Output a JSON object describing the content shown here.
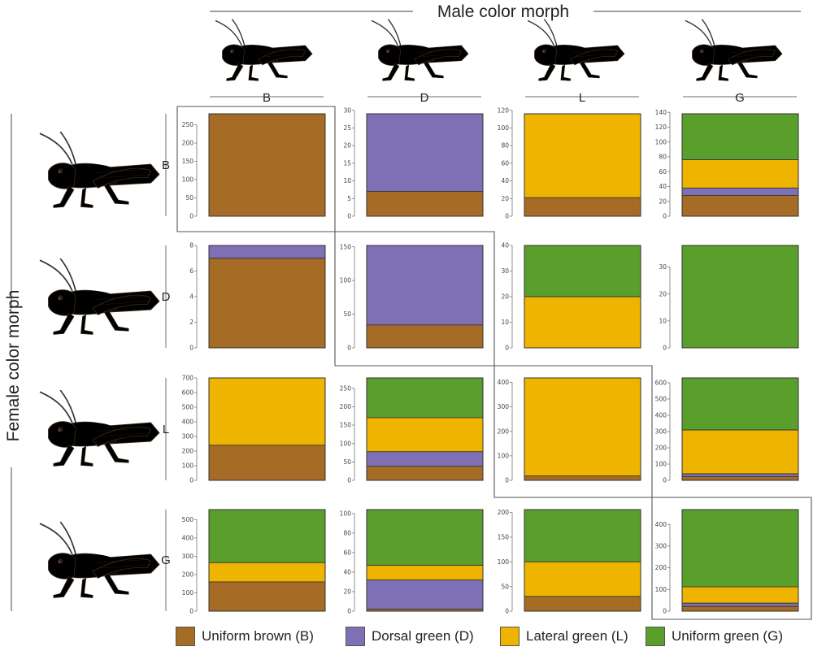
{
  "figure": {
    "male_axis_title": "Male color morph",
    "female_axis_title": "Female color morph"
  },
  "colors": {
    "B": "#a66c26",
    "D": "#7f6fb5",
    "L": "#eeb400",
    "G": "#5a9e2c",
    "body_brown": "#a87352",
    "body_green": "#7bbf44"
  },
  "legend": [
    {
      "key": "B",
      "label": "Uniform brown (B)"
    },
    {
      "key": "D",
      "label": "Dorsal green (D)"
    },
    {
      "key": "L",
      "label": "Lateral green (L)"
    },
    {
      "key": "G",
      "label": "Uniform green (G)"
    }
  ],
  "chart_data": {
    "type": "bar",
    "title": "",
    "layout": "4x4 grid of stacked single bars (rows: female morph, columns: male morph)",
    "column_labels": [
      "B",
      "D",
      "L",
      "G"
    ],
    "row_labels": [
      "B",
      "D",
      "L",
      "G"
    ],
    "stack_order": [
      "B",
      "D",
      "L",
      "G"
    ],
    "panels": [
      {
        "female": "B",
        "male": "B",
        "ylim": [
          0,
          280
        ],
        "ticks": [
          0,
          50,
          100,
          150,
          200,
          250
        ],
        "values": {
          "B": 280,
          "D": 0,
          "L": 0,
          "G": 0
        }
      },
      {
        "female": "B",
        "male": "D",
        "ylim": [
          0,
          29
        ],
        "ticks": [
          0,
          5,
          10,
          15,
          20,
          25,
          30
        ],
        "values": {
          "B": 7,
          "D": 22,
          "L": 0,
          "G": 0
        }
      },
      {
        "female": "B",
        "male": "L",
        "ylim": [
          0,
          116
        ],
        "ticks": [
          0,
          20,
          40,
          60,
          80,
          100,
          120
        ],
        "values": {
          "B": 21,
          "D": 0,
          "L": 95,
          "G": 0
        }
      },
      {
        "female": "B",
        "male": "G",
        "ylim": [
          0,
          138
        ],
        "ticks": [
          0,
          20,
          40,
          60,
          80,
          100,
          120,
          140
        ],
        "values": {
          "B": 28,
          "D": 10,
          "L": 38,
          "G": 62
        }
      },
      {
        "female": "D",
        "male": "B",
        "ylim": [
          0,
          8
        ],
        "ticks": [
          0,
          2,
          4,
          6,
          8
        ],
        "values": {
          "B": 7,
          "D": 1,
          "L": 0,
          "G": 0
        }
      },
      {
        "female": "D",
        "male": "D",
        "ylim": [
          0,
          152
        ],
        "ticks": [
          0,
          50,
          100,
          150
        ],
        "values": {
          "B": 34,
          "D": 118,
          "L": 0,
          "G": 0
        }
      },
      {
        "female": "D",
        "male": "L",
        "ylim": [
          0,
          40
        ],
        "ticks": [
          0,
          10,
          20,
          30,
          40
        ],
        "values": {
          "B": 0,
          "D": 0,
          "L": 20,
          "G": 20
        }
      },
      {
        "female": "D",
        "male": "G",
        "ylim": [
          0,
          38
        ],
        "ticks": [
          0,
          10,
          20,
          30
        ],
        "values": {
          "B": 0,
          "D": 0,
          "L": 0,
          "G": 38
        }
      },
      {
        "female": "L",
        "male": "B",
        "ylim": [
          0,
          700
        ],
        "ticks": [
          0,
          100,
          200,
          300,
          400,
          500,
          600,
          700
        ],
        "values": {
          "B": 240,
          "D": 0,
          "L": 460,
          "G": 0
        }
      },
      {
        "female": "L",
        "male": "D",
        "ylim": [
          0,
          278
        ],
        "ticks": [
          0,
          50,
          100,
          150,
          200,
          250
        ],
        "values": {
          "B": 38,
          "D": 40,
          "L": 92,
          "G": 108
        }
      },
      {
        "female": "L",
        "male": "L",
        "ylim": [
          0,
          418
        ],
        "ticks": [
          0,
          100,
          200,
          300,
          400
        ],
        "values": {
          "B": 18,
          "D": 0,
          "L": 400,
          "G": 0
        }
      },
      {
        "female": "L",
        "male": "G",
        "ylim": [
          0,
          630
        ],
        "ticks": [
          0,
          100,
          200,
          300,
          400,
          500,
          600
        ],
        "values": {
          "B": 22,
          "D": 18,
          "L": 270,
          "G": 320
        }
      },
      {
        "female": "G",
        "male": "B",
        "ylim": [
          0,
          555
        ],
        "ticks": [
          0,
          100,
          200,
          300,
          400,
          500
        ],
        "values": {
          "B": 160,
          "D": 0,
          "L": 105,
          "G": 290
        }
      },
      {
        "female": "G",
        "male": "D",
        "ylim": [
          0,
          104
        ],
        "ticks": [
          0,
          20,
          40,
          60,
          80,
          100
        ],
        "values": {
          "B": 2,
          "D": 30,
          "L": 15,
          "G": 57
        }
      },
      {
        "female": "G",
        "male": "L",
        "ylim": [
          0,
          206
        ],
        "ticks": [
          0,
          50,
          100,
          150,
          200
        ],
        "values": {
          "B": 30,
          "D": 0,
          "L": 70,
          "G": 106
        }
      },
      {
        "female": "G",
        "male": "G",
        "ylim": [
          0,
          468
        ],
        "ticks": [
          0,
          100,
          200,
          300,
          400
        ],
        "values": {
          "B": 22,
          "D": 15,
          "L": 75,
          "G": 356
        }
      }
    ]
  }
}
